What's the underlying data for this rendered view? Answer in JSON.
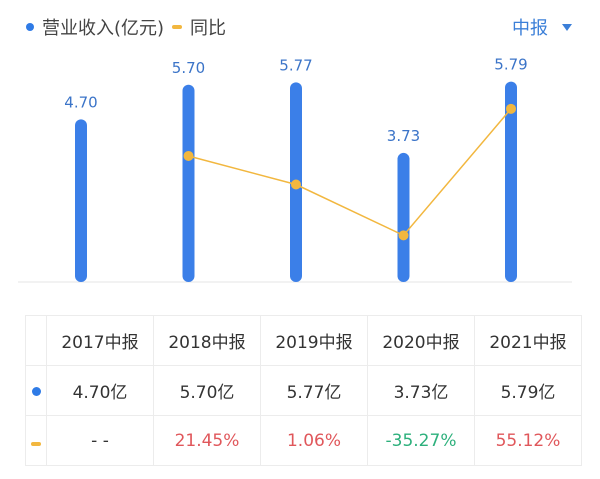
{
  "legend": {
    "revenue_label": "营业收入(亿元)",
    "yoy_label": "同比"
  },
  "period_selector": {
    "label": "中报"
  },
  "colors": {
    "bar": "#3b7fe8",
    "line": "#f2b73f",
    "positive": "#e0575b",
    "negative": "#2db07c",
    "axis": "#e6e6e6"
  },
  "chart_data": {
    "type": "bar",
    "categories": [
      "2017中报",
      "2018中报",
      "2019中报",
      "2020中报",
      "2021中报"
    ],
    "series": [
      {
        "name": "营业收入(亿元)",
        "type": "bar",
        "values": [
          4.7,
          5.7,
          5.77,
          3.73,
          5.79
        ],
        "labels": [
          "4.70",
          "5.70",
          "5.77",
          "3.73",
          "5.79"
        ]
      },
      {
        "name": "同比",
        "type": "line",
        "values": [
          null,
          21.45,
          1.06,
          -35.27,
          55.12
        ]
      }
    ],
    "ylim_bar": [
      0,
      8.15
    ],
    "ylim_line": [
      -60,
      80
    ],
    "grid": false,
    "legend": "top-left"
  },
  "table": {
    "headers": [
      "2017中报",
      "2018中报",
      "2019中报",
      "2020中报",
      "2021中报"
    ],
    "revenue": [
      "4.70亿",
      "5.70亿",
      "5.77亿",
      "3.73亿",
      "5.79亿"
    ],
    "yoy": [
      "- -",
      "21.45%",
      "1.06%",
      "-35.27%",
      "55.12%"
    ],
    "yoy_sign": [
      "none",
      "pos",
      "pos",
      "neg",
      "pos"
    ]
  }
}
